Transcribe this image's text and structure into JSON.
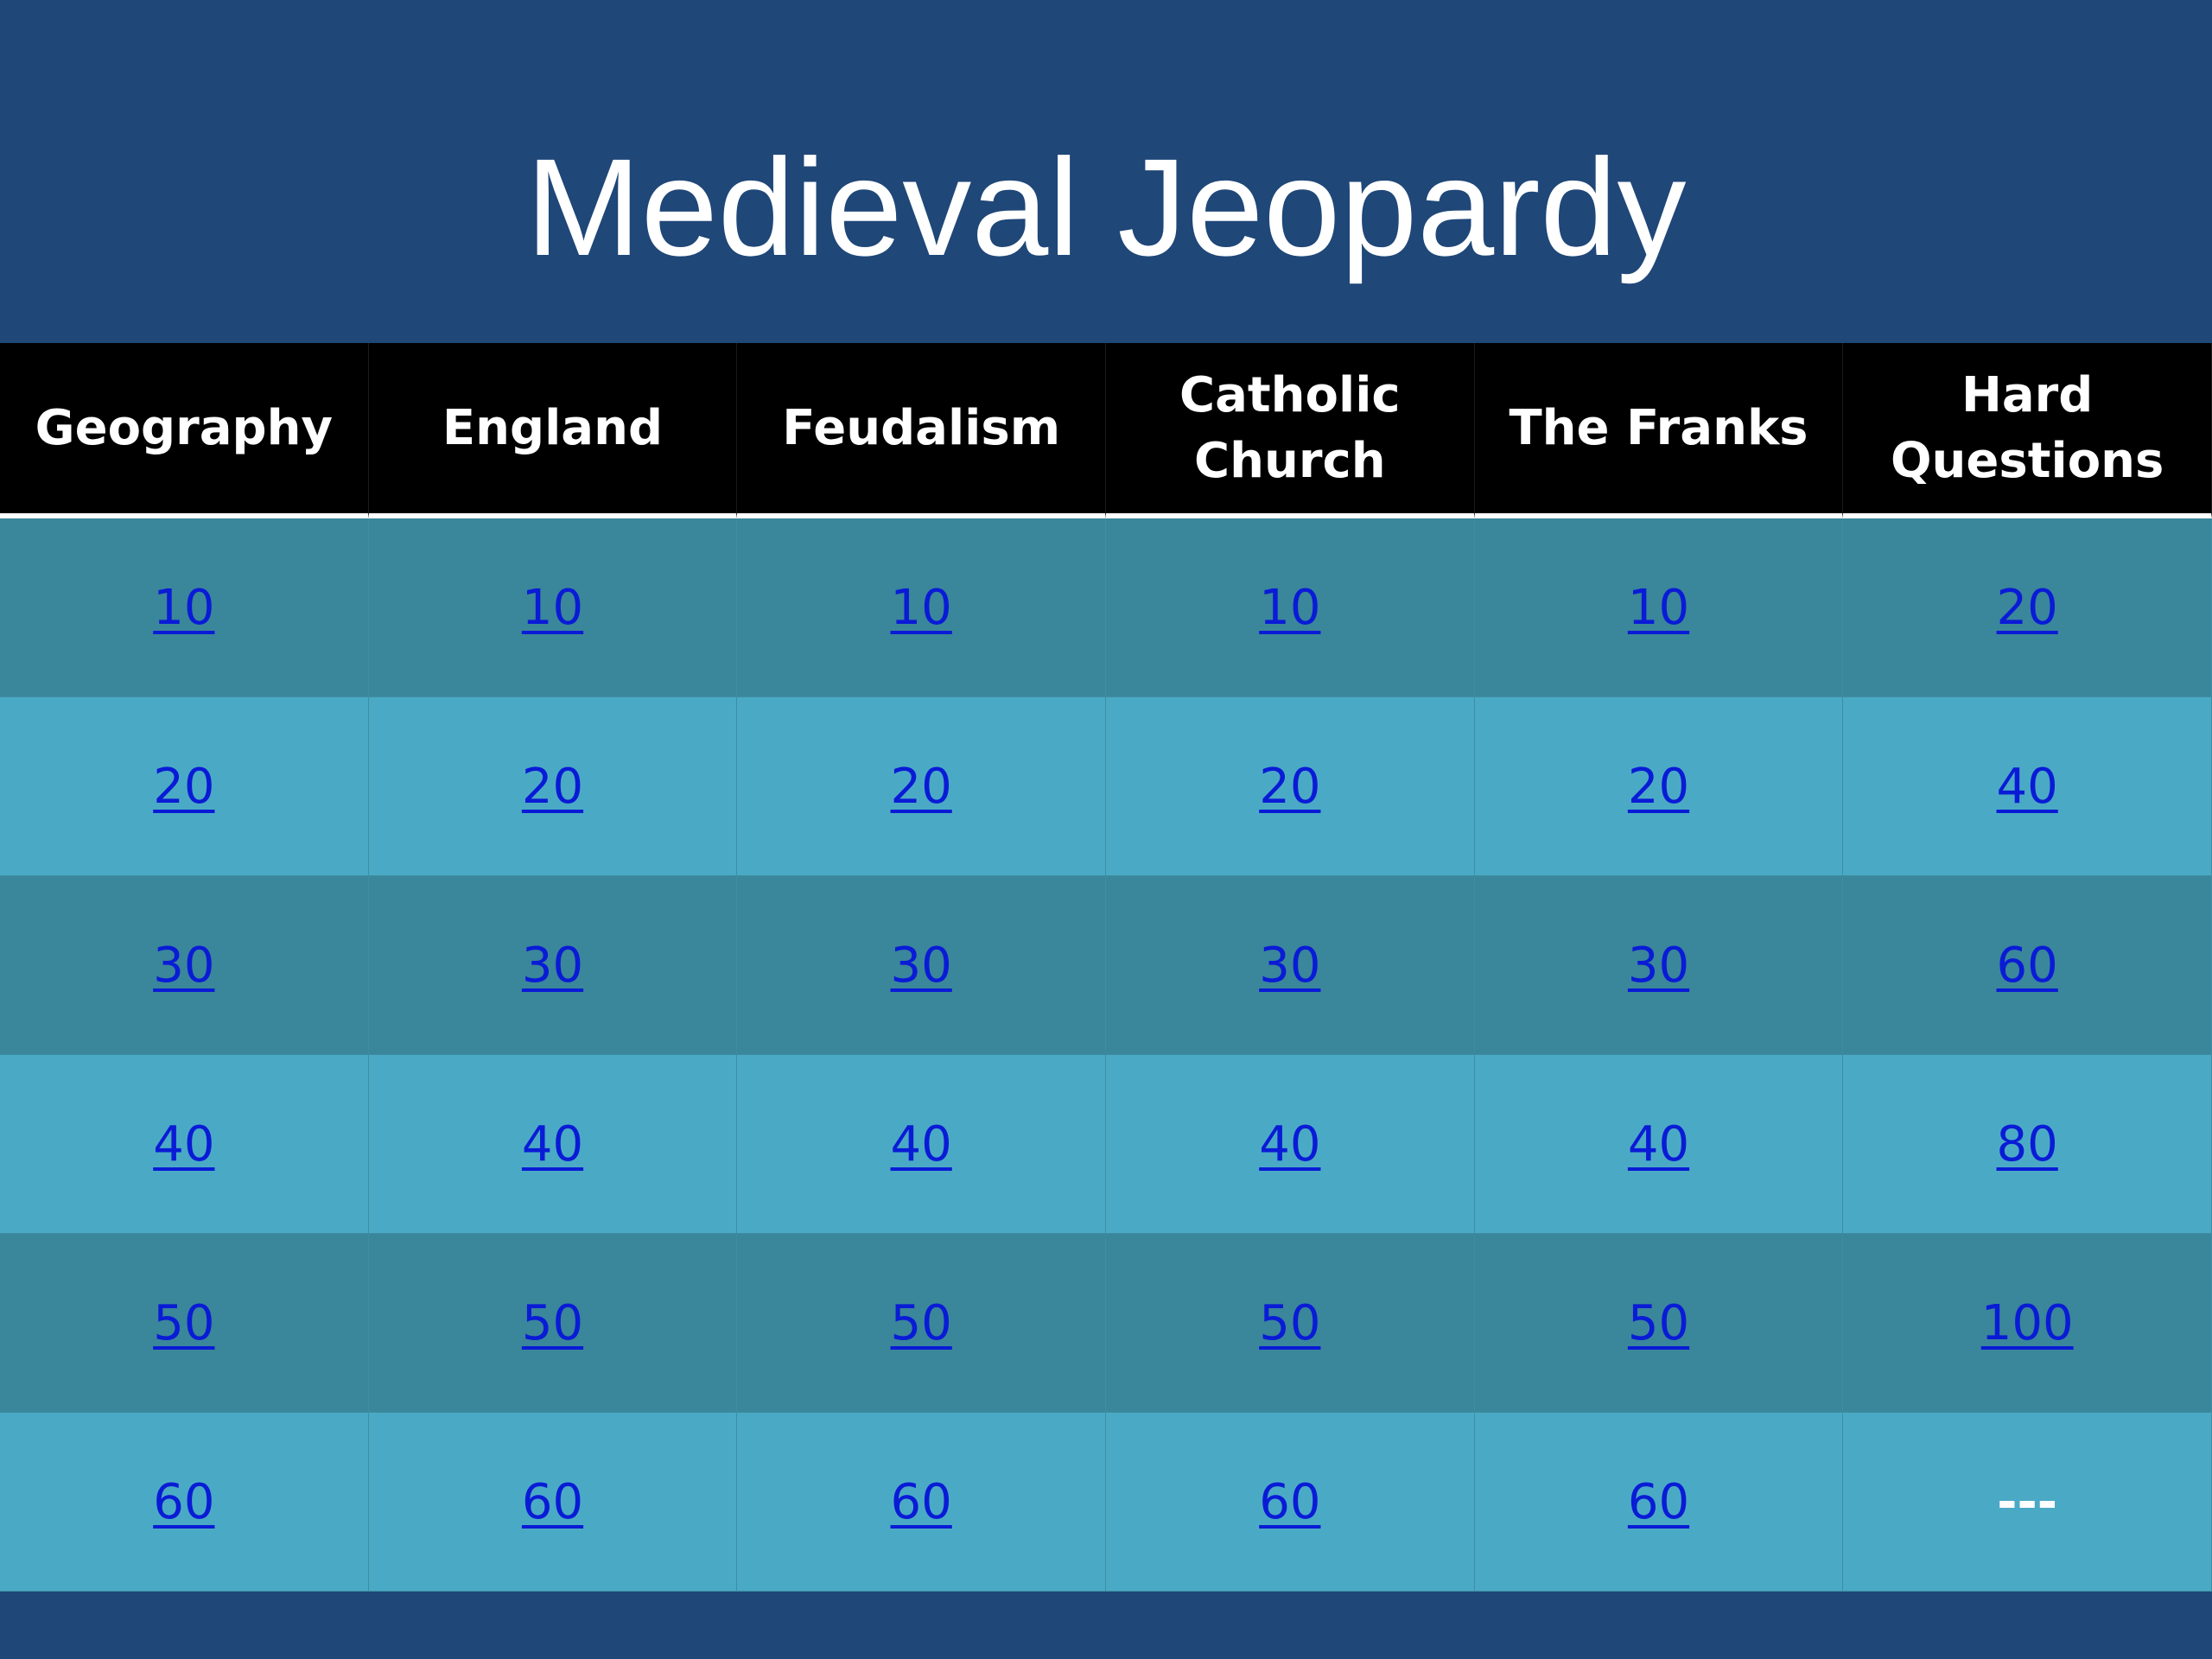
{
  "title": "Medieval Jeopardy",
  "colors": {
    "background": "#1f4778",
    "header_bg": "#000000",
    "row_dark": "#3a869b",
    "row_light": "#4aaac6",
    "link": "#0a1bd6"
  },
  "categories": [
    "Geography",
    "England",
    "Feudalism",
    "Catholic\nChurch",
    "The Franks",
    "Hard\nQuestions"
  ],
  "rows": [
    [
      "10",
      "10",
      "10",
      "10",
      "10",
      "20"
    ],
    [
      "20",
      "20",
      "20",
      "20",
      "20",
      "40"
    ],
    [
      "30",
      "30",
      "30",
      "30",
      "30",
      "60"
    ],
    [
      "40",
      "40",
      "40",
      "40",
      "40",
      "80"
    ],
    [
      "50",
      "50",
      "50",
      "50",
      "50",
      "100"
    ],
    [
      "60",
      "60",
      "60",
      "60",
      "60",
      "---"
    ]
  ]
}
